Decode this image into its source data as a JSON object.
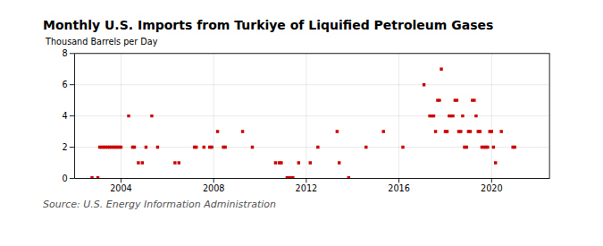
{
  "chart_data": {
    "type": "scatter",
    "title": "Monthly U.S. Imports from Turkiye of Liquified Petroleum Gases",
    "ylabel": "Thousand Barrels per Day",
    "source": "Source: U.S. Energy Information Administration",
    "color": "#cc0000",
    "marker": "square",
    "grid": true,
    "xlim": [
      2002.0,
      2022.5
    ],
    "ylim": [
      0,
      8
    ],
    "xticks": [
      2004,
      2008,
      2012,
      2016,
      2020
    ],
    "yticks": [
      0,
      2,
      4,
      6,
      8
    ],
    "x": [
      2002.75,
      2003.0,
      2003.08,
      2003.17,
      2003.25,
      2003.33,
      2003.42,
      2003.5,
      2003.58,
      2003.67,
      2003.75,
      2003.83,
      2003.92,
      2004.0,
      2004.33,
      2004.5,
      2004.58,
      2004.75,
      2004.92,
      2005.08,
      2005.33,
      2005.58,
      2006.33,
      2006.5,
      2007.17,
      2007.25,
      2007.58,
      2007.83,
      2007.92,
      2008.17,
      2008.42,
      2008.5,
      2009.25,
      2009.67,
      2010.67,
      2010.83,
      2010.92,
      2011.17,
      2011.25,
      2011.33,
      2011.42,
      2011.67,
      2012.17,
      2012.5,
      2013.33,
      2013.42,
      2013.83,
      2014.58,
      2015.33,
      2016.17,
      2017.08,
      2017.33,
      2017.42,
      2017.5,
      2017.58,
      2017.67,
      2017.75,
      2017.83,
      2018.0,
      2018.08,
      2018.17,
      2018.25,
      2018.33,
      2018.42,
      2018.5,
      2018.58,
      2018.67,
      2018.75,
      2018.83,
      2018.92,
      2019.0,
      2019.08,
      2019.17,
      2019.25,
      2019.33,
      2019.42,
      2019.5,
      2019.58,
      2019.67,
      2019.75,
      2019.83,
      2019.92,
      2020.0,
      2020.08,
      2020.17,
      2020.42,
      2020.92,
      2021.0
    ],
    "values": [
      0.05,
      0.05,
      2,
      2,
      2,
      2,
      2,
      2,
      2,
      2,
      2,
      2,
      2,
      2,
      4,
      2,
      2,
      1,
      1,
      2,
      4,
      2,
      1,
      1,
      2,
      2,
      2,
      2,
      2,
      3,
      2,
      2,
      3,
      2,
      1,
      1,
      1,
      0.05,
      0.05,
      0.05,
      0.05,
      1,
      1,
      2,
      3,
      1,
      0.05,
      2,
      3,
      2,
      6,
      4,
      4,
      4,
      3,
      5,
      5,
      7,
      3,
      3,
      4,
      4,
      4,
      5,
      5,
      3,
      3,
      4,
      2,
      2,
      3,
      3,
      5,
      5,
      4,
      3,
      3,
      2,
      2,
      2,
      2,
      3,
      3,
      2,
      1,
      3,
      2,
      2
    ]
  }
}
